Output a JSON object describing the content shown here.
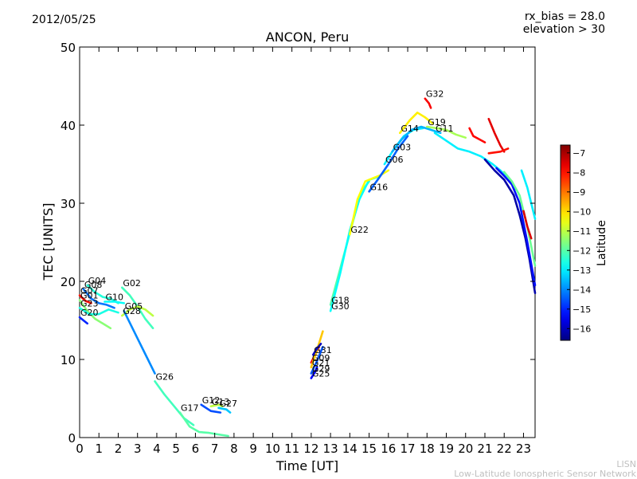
{
  "header": {
    "date": "2012/05/25",
    "rx_bias": "rx_bias = 28.0",
    "elevation": "elevation > 30"
  },
  "footer": {
    "line1": "LISN",
    "line2": "Low-Latitude Ionospheric Sensor Network"
  },
  "colorbar": {
    "label": "Latitude",
    "min": -16.6,
    "max": -6.6,
    "ticks": [
      -7,
      -8,
      -9,
      -10,
      -11,
      -12,
      -13,
      -14,
      -15,
      -16
    ],
    "colors": [
      "#00007f",
      "#0000ff",
      "#007fff",
      "#00ffff",
      "#7fff7f",
      "#ffff00",
      "#ff7f00",
      "#ff0000",
      "#7f0000"
    ]
  },
  "chart_data": {
    "type": "line",
    "title": "ANCON, Peru",
    "xlabel": "Time [UT]",
    "ylabel": "TEC [UNITS]",
    "xlim": [
      0,
      23.6
    ],
    "ylim": [
      0,
      50
    ],
    "xticks": [
      0,
      1,
      2,
      3,
      4,
      5,
      6,
      7,
      8,
      9,
      10,
      11,
      12,
      13,
      14,
      15,
      16,
      17,
      18,
      19,
      20,
      21,
      22,
      23
    ],
    "yticks": [
      0,
      10,
      20,
      30,
      40,
      50
    ],
    "series": [
      {
        "name": "G04",
        "lat": -12.5,
        "points": [
          [
            0.4,
            19.5
          ],
          [
            0.8,
            18.6
          ],
          [
            1.2,
            18.0
          ],
          [
            1.6,
            17.8
          ],
          [
            2.0,
            17.2
          ]
        ]
      },
      {
        "name": "G08",
        "lat": -14.2,
        "points": [
          [
            0.2,
            19.0
          ],
          [
            0.6,
            17.8
          ],
          [
            1.0,
            17.2
          ],
          [
            1.4,
            17.0
          ],
          [
            1.8,
            16.6
          ]
        ]
      },
      {
        "name": "G07",
        "lat": -8.0,
        "points": [
          [
            0.0,
            18.2
          ],
          [
            0.3,
            17.5
          ],
          [
            0.6,
            17.2
          ]
        ]
      },
      {
        "name": "G01",
        "lat": -11.5,
        "points": [
          [
            0.0,
            17.6
          ],
          [
            0.4,
            16.2
          ],
          [
            0.8,
            15.2
          ],
          [
            1.2,
            14.6
          ],
          [
            1.6,
            14.0
          ]
        ]
      },
      {
        "name": "G10",
        "lat": -12.8,
        "points": [
          [
            1.3,
            17.4
          ],
          [
            1.8,
            17.4
          ],
          [
            2.3,
            17.2
          ]
        ]
      },
      {
        "name": "G02",
        "lat": -12.2,
        "points": [
          [
            2.2,
            19.2
          ],
          [
            2.6,
            18.2
          ],
          [
            3.0,
            16.8
          ],
          [
            3.4,
            15.2
          ],
          [
            3.8,
            14.0
          ]
        ]
      },
      {
        "name": "G23",
        "lat": -12.6,
        "points": [
          [
            0.0,
            16.6
          ],
          [
            0.5,
            15.8
          ],
          [
            1.0,
            15.8
          ],
          [
            1.5,
            16.4
          ],
          [
            2.0,
            16.0
          ]
        ]
      },
      {
        "name": "G28",
        "lat": -11.0,
        "points": [
          [
            2.2,
            15.6
          ],
          [
            2.6,
            16.4
          ],
          [
            3.0,
            16.8
          ],
          [
            3.4,
            16.4
          ],
          [
            3.8,
            15.6
          ]
        ]
      },
      {
        "name": "G20",
        "lat": -15.0,
        "points": [
          [
            0.0,
            15.4
          ],
          [
            0.2,
            15.0
          ],
          [
            0.4,
            14.6
          ]
        ]
      },
      {
        "name": "G05",
        "lat": -14.0,
        "points": [
          [
            2.3,
            16.2
          ],
          [
            2.7,
            14.2
          ],
          [
            3.1,
            12.2
          ],
          [
            3.5,
            10.2
          ],
          [
            3.9,
            8.2
          ]
        ]
      },
      {
        "name": "G26",
        "lat": -12.2,
        "points": [
          [
            3.9,
            7.2
          ],
          [
            4.4,
            5.5
          ],
          [
            4.9,
            4.0
          ],
          [
            5.4,
            2.5
          ],
          [
            5.9,
            1.6
          ]
        ]
      },
      {
        "name": "G17",
        "lat": -12.0,
        "points": [
          [
            5.2,
            3.2
          ],
          [
            5.7,
            1.4
          ],
          [
            6.2,
            0.7
          ],
          [
            6.7,
            0.6
          ],
          [
            7.2,
            0.4
          ],
          [
            7.7,
            0.2
          ]
        ]
      },
      {
        "name": "G12",
        "lat": -14.6,
        "points": [
          [
            6.3,
            4.2
          ],
          [
            6.8,
            3.4
          ],
          [
            7.3,
            3.2
          ]
        ]
      },
      {
        "name": "G13",
        "lat": -11.0,
        "points": [
          [
            6.8,
            4.0
          ],
          [
            7.2,
            4.2
          ],
          [
            7.4,
            4.0
          ]
        ]
      },
      {
        "name": "G27",
        "lat": -13.4,
        "points": [
          [
            7.2,
            3.8
          ],
          [
            7.6,
            3.6
          ],
          [
            7.8,
            3.2
          ]
        ]
      },
      {
        "name": "G09",
        "lat": -7.8,
        "points": [
          [
            12.0,
            9.6
          ],
          [
            12.2,
            10.6
          ],
          [
            12.4,
            11.6
          ]
        ]
      },
      {
        "name": "G21",
        "lat": -9.8,
        "points": [
          [
            12.0,
            9.0
          ],
          [
            12.3,
            11.2
          ],
          [
            12.6,
            13.6
          ]
        ]
      },
      {
        "name": "G29",
        "lat": -14.5,
        "points": [
          [
            12.0,
            8.2
          ],
          [
            12.3,
            9.8
          ],
          [
            12.6,
            11.6
          ]
        ]
      },
      {
        "name": "G31",
        "lat": -16.0,
        "points": [
          [
            12.1,
            10.6
          ],
          [
            12.3,
            11.4
          ],
          [
            12.5,
            12.0
          ]
        ]
      },
      {
        "name": "G25",
        "lat": -15.4,
        "points": [
          [
            12.0,
            7.6
          ],
          [
            12.2,
            8.4
          ],
          [
            12.3,
            9.0
          ]
        ]
      },
      {
        "name": "G18",
        "lat": -12.0,
        "points": [
          [
            13.0,
            17.0
          ],
          [
            13.6,
            22.5
          ],
          [
            14.2,
            28.0
          ],
          [
            14.6,
            31.5
          ],
          [
            15.0,
            32.8
          ]
        ]
      },
      {
        "name": "G30",
        "lat": -12.8,
        "points": [
          [
            13.0,
            16.2
          ],
          [
            13.5,
            21.0
          ],
          [
            14.0,
            26.5
          ],
          [
            14.5,
            30.5
          ],
          [
            15.0,
            33.0
          ],
          [
            15.5,
            33.4
          ]
        ]
      },
      {
        "name": "G22",
        "lat": -10.4,
        "points": [
          [
            14.0,
            26.0
          ],
          [
            14.4,
            30.5
          ],
          [
            14.8,
            32.8
          ],
          [
            15.2,
            33.2
          ],
          [
            15.6,
            33.6
          ],
          [
            16.0,
            34.2
          ]
        ]
      },
      {
        "name": "G16",
        "lat": -14.4,
        "points": [
          [
            15.0,
            31.5
          ],
          [
            15.5,
            33.2
          ],
          [
            16.0,
            35.0
          ],
          [
            16.5,
            37.0
          ],
          [
            17.0,
            38.6
          ]
        ]
      },
      {
        "name": "G06",
        "lat": -13.0,
        "points": [
          [
            15.8,
            35.0
          ],
          [
            16.3,
            37.0
          ],
          [
            16.8,
            38.6
          ],
          [
            17.3,
            39.4
          ],
          [
            17.8,
            39.6
          ]
        ]
      },
      {
        "name": "G03",
        "lat": -13.6,
        "points": [
          [
            16.2,
            36.6
          ],
          [
            16.7,
            38.2
          ],
          [
            17.2,
            39.4
          ],
          [
            17.7,
            39.8
          ],
          [
            18.2,
            39.4
          ],
          [
            18.7,
            39.0
          ]
        ]
      },
      {
        "name": "G14",
        "lat": -10.2,
        "points": [
          [
            16.6,
            39.0
          ],
          [
            17.1,
            40.6
          ],
          [
            17.5,
            41.6
          ],
          [
            17.9,
            41.0
          ],
          [
            18.3,
            40.2
          ]
        ]
      },
      {
        "name": "G32",
        "lat": -7.8,
        "points": [
          [
            17.9,
            43.4
          ],
          [
            18.1,
            42.8
          ],
          [
            18.2,
            42.2
          ]
        ]
      },
      {
        "name": "G19",
        "lat": -11.2,
        "points": [
          [
            18.0,
            39.8
          ],
          [
            18.5,
            39.6
          ],
          [
            19.0,
            39.4
          ],
          [
            19.5,
            38.8
          ],
          [
            20.0,
            38.4
          ]
        ]
      },
      {
        "name": "G11",
        "lat": -13.0,
        "points": [
          [
            18.4,
            39.0
          ],
          [
            19.0,
            38.0
          ],
          [
            19.6,
            37.0
          ],
          [
            20.2,
            36.6
          ],
          [
            20.8,
            36.0
          ],
          [
            21.4,
            35.0
          ],
          [
            21.8,
            34.2
          ],
          [
            22.2,
            33.2
          ],
          [
            22.6,
            31.8
          ]
        ]
      },
      {
        "name": "",
        "lat": -16.2,
        "points": [
          [
            21.0,
            35.6
          ],
          [
            21.5,
            34.2
          ],
          [
            22.0,
            33.0
          ],
          [
            22.5,
            31.0
          ],
          [
            22.8,
            28.5
          ],
          [
            23.1,
            25.5
          ],
          [
            23.3,
            23.0
          ],
          [
            23.6,
            18.5
          ]
        ]
      },
      {
        "name": "",
        "lat": -15.2,
        "points": [
          [
            21.6,
            34.5
          ],
          [
            22.0,
            33.5
          ],
          [
            22.4,
            32.4
          ],
          [
            22.8,
            30.0
          ],
          [
            23.2,
            25.0
          ],
          [
            23.6,
            19.5
          ]
        ]
      },
      {
        "name": "",
        "lat": -11.8,
        "points": [
          [
            22.0,
            34.0
          ],
          [
            22.4,
            32.8
          ],
          [
            22.8,
            31.0
          ],
          [
            23.2,
            27.0
          ],
          [
            23.6,
            22.0
          ]
        ]
      },
      {
        "name": "",
        "lat": -13.0,
        "points": [
          [
            22.9,
            34.2
          ],
          [
            23.2,
            32.0
          ],
          [
            23.6,
            28.0
          ]
        ]
      },
      {
        "name": "",
        "lat": -7.6,
        "points": [
          [
            21.2,
            40.8
          ],
          [
            21.5,
            39.0
          ],
          [
            21.8,
            37.4
          ],
          [
            22.0,
            36.6
          ]
        ]
      },
      {
        "name": "",
        "lat": -8.0,
        "points": [
          [
            21.2,
            36.4
          ],
          [
            21.8,
            36.6
          ],
          [
            22.2,
            37.0
          ]
        ]
      },
      {
        "name": "",
        "lat": -7.9,
        "points": [
          [
            20.2,
            39.6
          ],
          [
            20.4,
            38.6
          ],
          [
            20.7,
            38.2
          ],
          [
            21.0,
            37.8
          ]
        ]
      },
      {
        "name": "",
        "lat": -7.5,
        "points": [
          [
            23.0,
            29.0
          ],
          [
            23.2,
            27.0
          ],
          [
            23.4,
            25.5
          ]
        ]
      }
    ]
  }
}
